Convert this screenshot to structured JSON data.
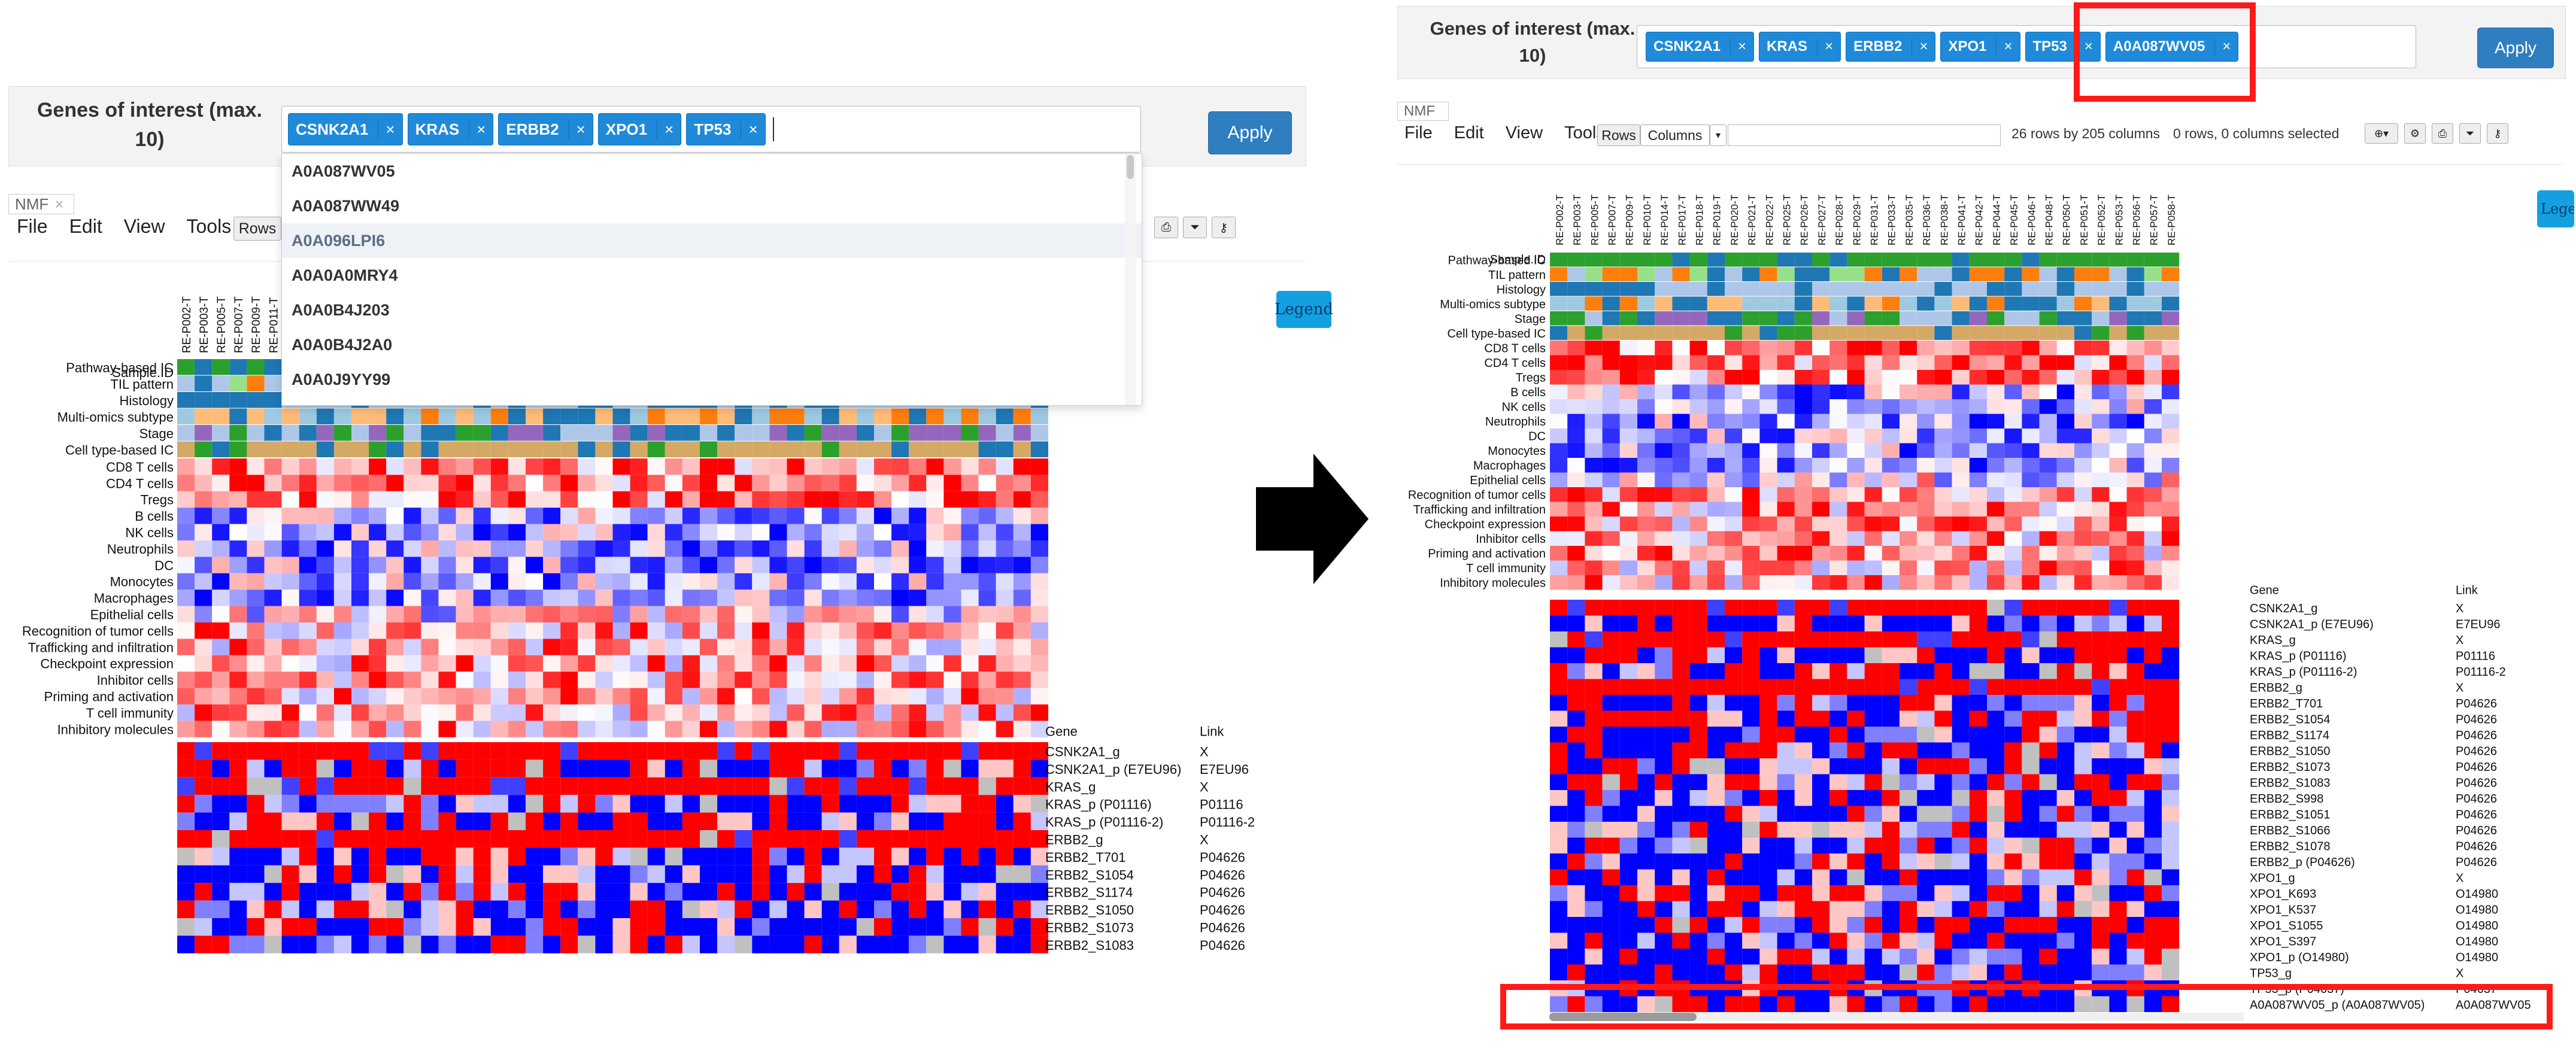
{
  "genes_label": "Genes of interest (max. 10)",
  "genes_label_line1": "Genes of interest (max.",
  "genes_label_line2": "10)",
  "tags_left": [
    "CSNK2A1",
    "KRAS",
    "ERBB2",
    "XPO1",
    "TP53"
  ],
  "tags_right": [
    "CSNK2A1",
    "KRAS",
    "ERBB2",
    "XPO1",
    "TP53",
    "A0A087WV05"
  ],
  "tag_close": "×",
  "apply_label": "Apply",
  "nmf_tab": "NMF",
  "menu": [
    "File",
    "Edit",
    "View",
    "Tools"
  ],
  "rows_btn": "Rows",
  "columns_btn": "Columns",
  "summary_rows": "26 rows by 205 columns",
  "summary_sel": "0 rows, 0 columns selected",
  "legend_label": "Legend",
  "legend_label_cut": "Lege",
  "dropdown_items": [
    "A0A087WV05",
    "A0A087WW49",
    "A0A096LPI6",
    "A0A0A0MRY4",
    "A0A0B4J203",
    "A0A0B4J2A0",
    "A0A0J9YY99"
  ],
  "sample_id_label": "Sample.ID",
  "left_samples": [
    "RE-P002-T",
    "RE-P003-T",
    "RE-P005-T",
    "RE-P007-T",
    "RE-P009-T",
    "RE-P011-T"
  ],
  "right_samples": [
    "RE-P002-T",
    "RE-P003-T",
    "RE-P005-T",
    "RE-P007-T",
    "RE-P009-T",
    "RE-P010-T",
    "RE-P014-T",
    "RE-P017-T",
    "RE-P018-T",
    "RE-P019-T",
    "RE-P020-T",
    "RE-P021-T",
    "RE-P022-T",
    "RE-P025-T",
    "RE-P026-T",
    "RE-P027-T",
    "RE-P028-T",
    "RE-P029-T",
    "RE-P031-T",
    "RE-P033-T",
    "RE-P035-T",
    "RE-P036-T",
    "RE-P038-T",
    "RE-P041-T",
    "RE-P042-T",
    "RE-P044-T",
    "RE-P045-T",
    "RE-P046-T",
    "RE-P048-T",
    "RE-P050-T",
    "RE-P051-T",
    "RE-P052-T",
    "RE-P053-T",
    "RE-P056-T",
    "RE-P057-T",
    "RE-P058-T"
  ],
  "annotation_rows": [
    "Pathway-based IC",
    "TIL pattern",
    "Histology",
    "Multi-omics subtype",
    "Stage",
    "Cell type-based IC"
  ],
  "score_rows": [
    "CD8 T cells",
    "CD4 T cells",
    "Tregs",
    "B cells",
    "NK cells",
    "Neutrophils",
    "DC",
    "Monocytes",
    "Macrophages",
    "Epithelial cells",
    "Recognition of tumor cells",
    "Trafficking and infiltration",
    "Checkpoint expression",
    "Inhibitor cells",
    "Priming and activation",
    "T cell immunity",
    "Inhibitory molecules"
  ],
  "gene_header": "Gene",
  "link_header": "Link",
  "left_genes": [
    [
      "CSNK2A1_g",
      "X"
    ],
    [
      "CSNK2A1_p (E7EU96)",
      "E7EU96"
    ],
    [
      "KRAS_g",
      "X"
    ],
    [
      "KRAS_p (P01116)",
      "P01116"
    ],
    [
      "KRAS_p (P01116-2)",
      "P01116-2"
    ],
    [
      "ERBB2_g",
      "X"
    ],
    [
      "ERBB2_T701",
      "P04626"
    ],
    [
      "ERBB2_S1054",
      "P04626"
    ],
    [
      "ERBB2_S1174",
      "P04626"
    ],
    [
      "ERBB2_S1050",
      "P04626"
    ],
    [
      "ERBB2_S1073",
      "P04626"
    ],
    [
      "ERBB2_S1083",
      "P04626"
    ]
  ],
  "right_genes": [
    [
      "CSNK2A1_g",
      "X"
    ],
    [
      "CSNK2A1_p (E7EU96)",
      "E7EU96"
    ],
    [
      "KRAS_g",
      "X"
    ],
    [
      "KRAS_p (P01116)",
      "P01116"
    ],
    [
      "KRAS_p (P01116-2)",
      "P01116-2"
    ],
    [
      "ERBB2_g",
      "X"
    ],
    [
      "ERBB2_T701",
      "P04626"
    ],
    [
      "ERBB2_S1054",
      "P04626"
    ],
    [
      "ERBB2_S1174",
      "P04626"
    ],
    [
      "ERBB2_S1050",
      "P04626"
    ],
    [
      "ERBB2_S1073",
      "P04626"
    ],
    [
      "ERBB2_S1083",
      "P04626"
    ],
    [
      "ERBB2_S998",
      "P04626"
    ],
    [
      "ERBB2_S1051",
      "P04626"
    ],
    [
      "ERBB2_S1066",
      "P04626"
    ],
    [
      "ERBB2_S1078",
      "P04626"
    ],
    [
      "ERBB2_p (P04626)",
      "P04626"
    ],
    [
      "XPO1_g",
      "X"
    ],
    [
      "XPO1_K693",
      "O14980"
    ],
    [
      "XPO1_K537",
      "O14980"
    ],
    [
      "XPO1_S1055",
      "O14980"
    ],
    [
      "XPO1_S397",
      "O14980"
    ],
    [
      "XPO1_p (O14980)",
      "O14980"
    ],
    [
      "TP53_g",
      "X"
    ],
    [
      "TP53_p (P04637)",
      "P04637"
    ],
    [
      "A0A087WV05_p (A0A087WV05)",
      "A0A087WV05"
    ]
  ],
  "colors": {
    "accent": "#1f8ad9",
    "apply": "#2f7ec0",
    "legend": "#13a0e0",
    "highlight_box": "#ff1a1a",
    "red": "#ff0000",
    "blue": "#0000ff"
  }
}
